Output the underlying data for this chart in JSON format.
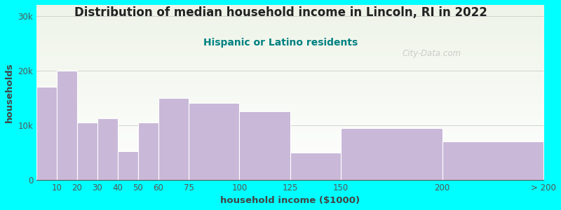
{
  "title": "Distribution of median household income in Lincoln, RI in 2022",
  "subtitle": "Hispanic or Latino residents",
  "xlabel": "household income ($1000)",
  "ylabel": "households",
  "bin_edges": [
    0,
    10,
    20,
    30,
    40,
    50,
    60,
    75,
    100,
    125,
    150,
    200,
    250
  ],
  "bin_labels": [
    "10",
    "20",
    "30",
    "40",
    "50",
    "60",
    "75",
    "100",
    "125",
    "150",
    "200",
    "> 200"
  ],
  "bar_values": [
    17000,
    20000,
    10500,
    11200,
    5200,
    10500,
    15000,
    14000,
    12500,
    5000,
    9500,
    7000
  ],
  "bar_color": "#c9b8d8",
  "bar_edge_color": "#ffffff",
  "background_outer": "#00ffff",
  "plot_bg_top": "#eef4e8",
  "plot_bg_bottom": "#ffffff",
  "title_color": "#222222",
  "subtitle_color": "#008080",
  "axis_label_color": "#444444",
  "tick_color": "#555555",
  "ytick_labels": [
    "0",
    "10k",
    "20k",
    "30k"
  ],
  "ytick_values": [
    0,
    10000,
    20000,
    30000
  ],
  "ylim": [
    0,
    32000
  ],
  "grid_color": "#cccccc",
  "watermark_text": "City-Data.com",
  "title_fontsize": 12,
  "subtitle_fontsize": 10,
  "axis_label_fontsize": 9.5,
  "tick_fontsize": 8.5
}
